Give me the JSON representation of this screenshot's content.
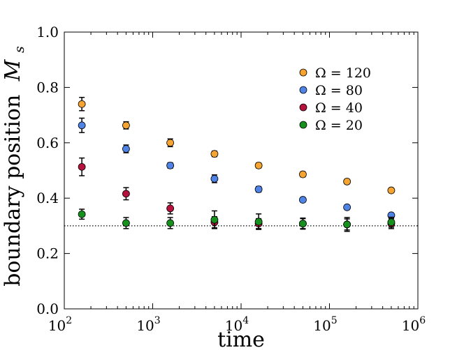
{
  "chart_data": {
    "type": "scatter",
    "xlabel": "time",
    "ylabel": "boundary position",
    "ylabel_symbol": "M",
    "ylabel_subscript": "s",
    "x_scale": "log",
    "xlim": [
      100,
      1000000
    ],
    "ylim": [
      0.0,
      1.0
    ],
    "x_ticks": [
      100,
      1000,
      10000,
      100000,
      1000000
    ],
    "x_tick_labels": [
      {
        "base": "10",
        "exp": "2"
      },
      {
        "base": "10",
        "exp": "3"
      },
      {
        "base": "10",
        "exp": "4"
      },
      {
        "base": "10",
        "exp": "5"
      },
      {
        "base": "10",
        "exp": "6"
      }
    ],
    "y_ticks": [
      0.0,
      0.2,
      0.4,
      0.6,
      0.8,
      1.0
    ],
    "y_tick_labels": [
      "0.0",
      "0.2",
      "0.4",
      "0.6",
      "0.8",
      "1.0"
    ],
    "grid": false,
    "legend_position": "top-right",
    "reference_line": {
      "y": 0.3,
      "style": "dotted",
      "color": "#000000"
    },
    "x": [
      158,
      500,
      1580,
      5000,
      15800,
      50000,
      158000,
      500000
    ],
    "series": [
      {
        "name": "Ω = 120",
        "color": "#f5a431",
        "values": [
          0.74,
          0.663,
          0.6,
          0.56,
          0.518,
          0.486,
          0.46,
          0.428
        ],
        "errors": [
          0.024,
          0.013,
          0.014,
          0.01,
          0.009,
          0.009,
          0.008,
          0.008
        ]
      },
      {
        "name": "Ω = 80",
        "color": "#4f83e6",
        "values": [
          0.663,
          0.578,
          0.518,
          0.47,
          0.432,
          0.394,
          0.367,
          0.338
        ],
        "errors": [
          0.026,
          0.014,
          0.01,
          0.014,
          0.01,
          0.008,
          0.008,
          0.008
        ]
      },
      {
        "name": "Ω = 40",
        "color": "#b5123d",
        "values": [
          0.513,
          0.416,
          0.363,
          0.313,
          0.308,
          0.308,
          0.305,
          0.308
        ],
        "errors": [
          0.032,
          0.022,
          0.02,
          0.02,
          0.018,
          0.018,
          0.025,
          0.018
        ]
      },
      {
        "name": "Ω = 20",
        "color": "#17911d",
        "values": [
          0.342,
          0.31,
          0.31,
          0.322,
          0.315,
          0.308,
          0.305,
          0.313
        ],
        "errors": [
          0.018,
          0.02,
          0.02,
          0.032,
          0.028,
          0.02,
          0.02,
          0.018
        ]
      }
    ]
  }
}
